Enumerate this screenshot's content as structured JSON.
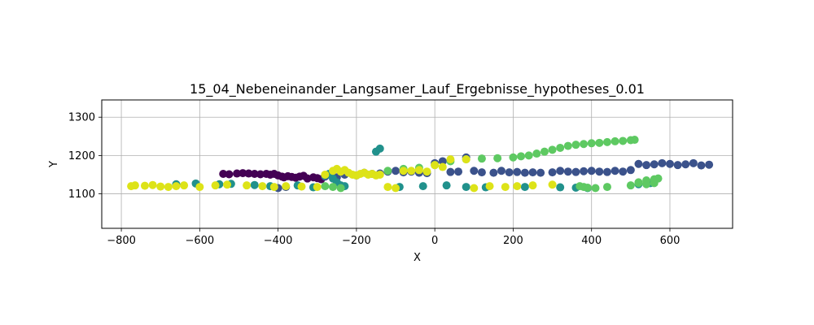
{
  "chart_data": {
    "type": "scatter",
    "title": "15_04_Nebeneinander_Langsamer_Lauf_Ergebnisse_hypotheses_0.01",
    "xlabel": "X",
    "ylabel": "Y",
    "xlim": [
      -850,
      760
    ],
    "ylim": [
      1010,
      1345
    ],
    "xticks": [
      -800,
      -600,
      -400,
      -200,
      0,
      200,
      400,
      600
    ],
    "yticks": [
      1100,
      1200,
      1300
    ],
    "grid": true,
    "colormap": "viridis",
    "colors": {
      "c0": "#440154",
      "c1": "#3b528b",
      "c2": "#21918c",
      "c3": "#5ec962",
      "c4": "#dde318"
    },
    "series": [
      {
        "color_key": "c0",
        "x": [
          -540,
          -525,
          -505,
          -490,
          -475,
          -460,
          -445,
          -430,
          -420,
          -410,
          -400,
          -390,
          -385,
          -375,
          -365,
          -355,
          -345,
          -335,
          -325,
          -310,
          -300,
          -290
        ],
        "y": [
          1152,
          1151,
          1153,
          1154,
          1153,
          1152,
          1151,
          1152,
          1150,
          1152,
          1148,
          1145,
          1143,
          1146,
          1144,
          1142,
          1145,
          1147,
          1140,
          1143,
          1141,
          1138
        ]
      },
      {
        "color_key": "c1",
        "x": [
          -400,
          -380,
          -280,
          -250,
          -230,
          -200,
          -180,
          -160,
          -140,
          -120,
          -100,
          -80,
          -60,
          -40,
          -20,
          0,
          20,
          40,
          60,
          80,
          100,
          120,
          150,
          170,
          190,
          210,
          230,
          250,
          270,
          300,
          320,
          340,
          360,
          380,
          400,
          420,
          440,
          460,
          480,
          500,
          520,
          540,
          560,
          580,
          600,
          620,
          640,
          660,
          680,
          700
        ],
        "y": [
          1115,
          1118,
          1145,
          1143,
          1150,
          1148,
          1155,
          1152,
          1153,
          1158,
          1160,
          1156,
          1158,
          1155,
          1154,
          1180,
          1185,
          1157,
          1158,
          1195,
          1160,
          1156,
          1155,
          1160,
          1156,
          1157,
          1155,
          1156,
          1155,
          1156,
          1160,
          1158,
          1157,
          1159,
          1160,
          1158,
          1157,
          1160,
          1158,
          1162,
          1178,
          1175,
          1177,
          1180,
          1178,
          1175,
          1177,
          1180,
          1174,
          1176
        ]
      },
      {
        "color_key": "c2",
        "x": [
          -660,
          -610,
          -550,
          -520,
          -460,
          -420,
          -350,
          -310,
          -280,
          -270,
          -260,
          -250,
          -240,
          -230,
          -150,
          -140,
          -90,
          -30,
          30,
          80,
          130,
          230,
          320,
          360,
          390,
          520,
          550
        ],
        "y": [
          1125,
          1127,
          1125,
          1126,
          1123,
          1120,
          1122,
          1117,
          1148,
          1152,
          1140,
          1130,
          1122,
          1120,
          1210,
          1218,
          1118,
          1120,
          1122,
          1118,
          1117,
          1118,
          1117,
          1116,
          1115,
          1125,
          1128
        ]
      },
      {
        "color_key": "c3",
        "x": [
          -280,
          -260,
          -240,
          -120,
          -80,
          -40,
          0,
          40,
          80,
          120,
          160,
          200,
          220,
          240,
          260,
          280,
          300,
          320,
          340,
          360,
          380,
          400,
          420,
          440,
          460,
          480,
          500,
          510,
          520,
          540,
          560,
          370,
          380,
          390,
          410,
          440,
          500,
          520,
          540,
          560,
          570
        ],
        "y": [
          1120,
          1118,
          1115,
          1160,
          1165,
          1168,
          1175,
          1185,
          1190,
          1192,
          1193,
          1195,
          1198,
          1200,
          1205,
          1210,
          1215,
          1220,
          1225,
          1228,
          1230,
          1232,
          1233,
          1235,
          1237,
          1238,
          1240,
          1241,
          1130,
          1125,
          1128,
          1120,
          1118,
          1116,
          1115,
          1118,
          1122,
          1128,
          1135,
          1138,
          1140
        ]
      },
      {
        "color_key": "c4",
        "x": [
          -775,
          -765,
          -740,
          -720,
          -700,
          -680,
          -660,
          -640,
          -600,
          -560,
          -530,
          -480,
          -440,
          -410,
          -380,
          -340,
          -300,
          -280,
          -260,
          -250,
          -240,
          -230,
          -220,
          -210,
          -200,
          -190,
          -180,
          -170,
          -160,
          -150,
          -140,
          -120,
          -100,
          -80,
          -60,
          -40,
          -20,
          0,
          20,
          40,
          80,
          100,
          140,
          180,
          210,
          250,
          300
        ],
        "y": [
          1120,
          1122,
          1121,
          1123,
          1119,
          1118,
          1120,
          1122,
          1118,
          1122,
          1124,
          1122,
          1120,
          1118,
          1120,
          1119,
          1118,
          1150,
          1160,
          1165,
          1158,
          1162,
          1155,
          1150,
          1148,
          1152,
          1155,
          1150,
          1152,
          1148,
          1150,
          1118,
          1115,
          1160,
          1160,
          1162,
          1158,
          1175,
          1170,
          1190,
          1190,
          1115,
          1120,
          1118,
          1120,
          1122,
          1124
        ]
      }
    ]
  }
}
